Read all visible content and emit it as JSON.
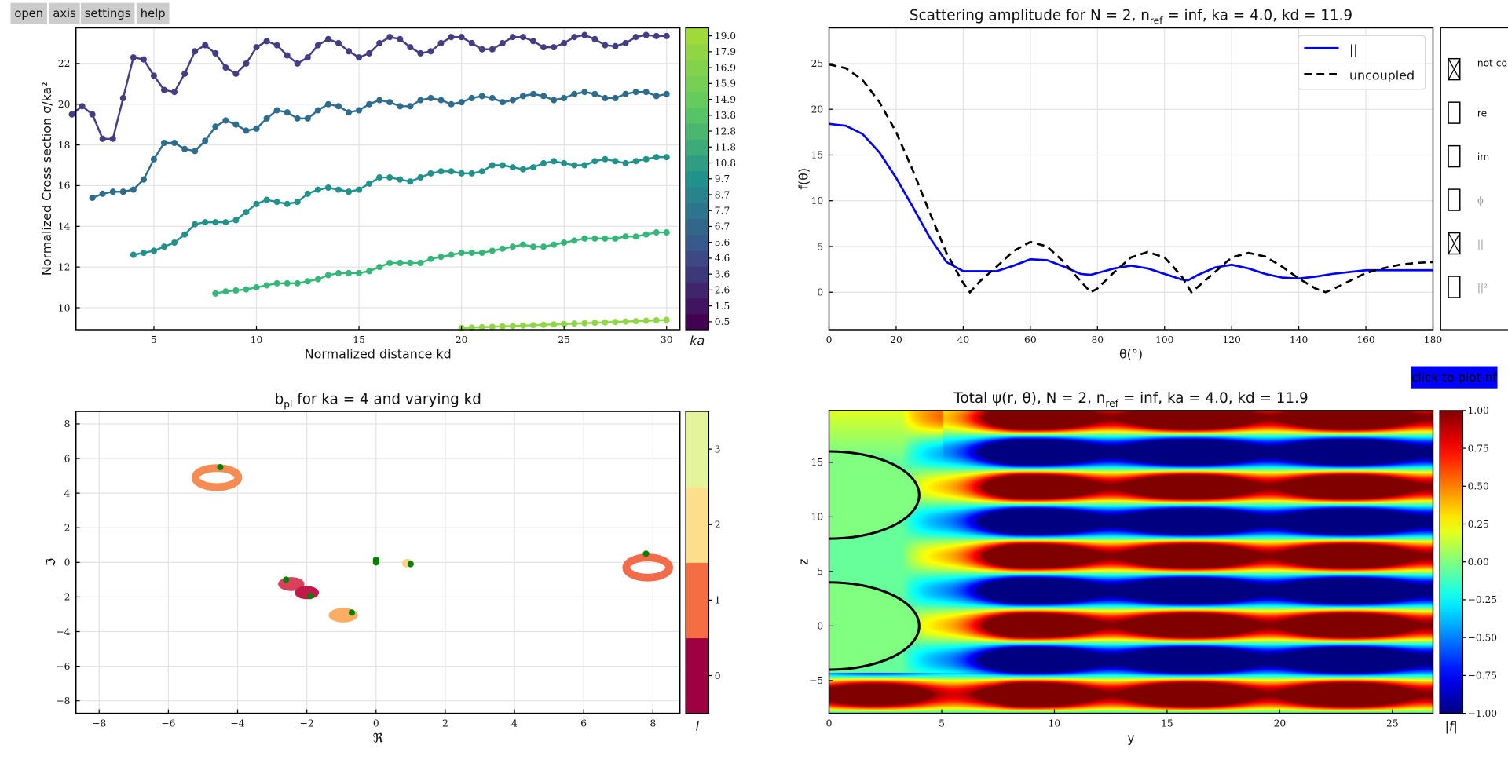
{
  "toolbar": {
    "buttons": [
      "open",
      "axis",
      "settings",
      "help"
    ]
  },
  "nf_button": "click to plot nf",
  "chart_data": [
    {
      "type": "scatter-line",
      "xlabel": "Normalized distance kd",
      "ylabel": "Normalized Cross section σ/ka²",
      "xlim": [
        1.2,
        30.65
      ],
      "ylim": [
        8.92,
        23.75
      ],
      "xticks": [
        5,
        10,
        15,
        20,
        25,
        30
      ],
      "xtick_labels": [
        "5",
        "10",
        "15",
        "20",
        "25",
        "30"
      ],
      "yticks": [
        10,
        12,
        14,
        16,
        18,
        20,
        22
      ],
      "ytick_labels": [
        "10",
        "12",
        "14",
        "16",
        "18",
        "20",
        "22"
      ],
      "colorbar": {
        "label": "ka",
        "ticks": [
          "0.5",
          "1.5",
          "2.6",
          "3.6",
          "4.6",
          "5.6",
          "6.7",
          "7.7",
          "8.7",
          "9.7",
          "10.8",
          "11.8",
          "12.8",
          "13.8",
          "14.9",
          "15.9",
          "16.9",
          "17.9",
          "19.0"
        ],
        "cmap": [
          "#440154",
          "#3b528b",
          "#21918c",
          "#5ec962",
          "#a0da39"
        ]
      },
      "series": [
        {
          "color": "#433d84",
          "x0": 1,
          "step": 0.5,
          "y": [
            19.5,
            19.9,
            19.5,
            18.3,
            18.3,
            20.3,
            22.3,
            22.2,
            21.4,
            20.7,
            20.6,
            21.5,
            22.6,
            22.9,
            22.5,
            21.8,
            21.5,
            22.0,
            22.8,
            23.1,
            22.9,
            22.4,
            22.0,
            22.3,
            22.9,
            23.2,
            23.0,
            22.6,
            22.3,
            22.5,
            23.0,
            23.3,
            23.2,
            22.8,
            22.5,
            22.6,
            23.0,
            23.3,
            23.3,
            23.0,
            22.7,
            22.7,
            23.0,
            23.3,
            23.3,
            23.1,
            22.8,
            22.8,
            23.0,
            23.3,
            23.4,
            23.2,
            22.9,
            22.85,
            23.0,
            23.3,
            23.4,
            23.35,
            23.35
          ]
        },
        {
          "color": "#2e6c8e",
          "x0": 2,
          "step": 0.5,
          "y": [
            15.4,
            15.6,
            15.7,
            15.7,
            15.8,
            16.3,
            17.3,
            18.1,
            18.1,
            17.8,
            17.7,
            18.2,
            18.9,
            19.2,
            19.0,
            18.7,
            18.8,
            19.3,
            19.7,
            19.6,
            19.3,
            19.3,
            19.7,
            20.0,
            19.9,
            19.6,
            19.7,
            20.0,
            20.2,
            20.1,
            19.9,
            19.9,
            20.2,
            20.3,
            20.2,
            20.0,
            20.1,
            20.3,
            20.4,
            20.3,
            20.1,
            20.2,
            20.4,
            20.5,
            20.4,
            20.2,
            20.3,
            20.5,
            20.6,
            20.5,
            20.3,
            20.3,
            20.5,
            20.6,
            20.6,
            20.4,
            20.5
          ]
        },
        {
          "color": "#21918c",
          "x0": 4,
          "step": 0.5,
          "y": [
            12.6,
            12.7,
            12.8,
            13.0,
            13.2,
            13.6,
            14.1,
            14.2,
            14.2,
            14.2,
            14.3,
            14.7,
            15.1,
            15.3,
            15.2,
            15.1,
            15.2,
            15.6,
            15.8,
            15.9,
            15.8,
            15.7,
            15.8,
            16.1,
            16.4,
            16.4,
            16.3,
            16.2,
            16.4,
            16.6,
            16.7,
            16.7,
            16.6,
            16.6,
            16.7,
            17.0,
            17.0,
            16.9,
            16.8,
            16.9,
            17.1,
            17.2,
            17.1,
            17.0,
            17.0,
            17.2,
            17.3,
            17.2,
            17.1,
            17.2,
            17.3,
            17.4,
            17.4
          ]
        },
        {
          "color": "#35b779",
          "x0": 8,
          "step": 0.5,
          "y": [
            10.7,
            10.8,
            10.85,
            10.9,
            11.0,
            11.1,
            11.2,
            11.2,
            11.2,
            11.3,
            11.4,
            11.6,
            11.7,
            11.7,
            11.7,
            11.8,
            12.0,
            12.2,
            12.2,
            12.2,
            12.2,
            12.4,
            12.5,
            12.6,
            12.7,
            12.7,
            12.7,
            12.8,
            12.9,
            13.0,
            13.1,
            13.0,
            13.0,
            13.1,
            13.2,
            13.3,
            13.4,
            13.4,
            13.4,
            13.4,
            13.5,
            13.5,
            13.6,
            13.7,
            13.7
          ]
        },
        {
          "color": "#8fd744",
          "x0": 20,
          "step": 0.5,
          "y": [
            9.0,
            9.02,
            9.04,
            9.06,
            9.08,
            9.1,
            9.12,
            9.14,
            9.16,
            9.18,
            9.2,
            9.22,
            9.24,
            9.26,
            9.28,
            9.3,
            9.32,
            9.34,
            9.36,
            9.38,
            9.4
          ]
        }
      ]
    },
    {
      "type": "line",
      "title": {
        "a": "Scattering amplitude for N = 2, n",
        "sub": "ref",
        "b": " = inf, ka = 4.0, kd = 11.9"
      },
      "xlabel": "θ(°)",
      "ylabel": "f(θ)",
      "xlim": [
        0,
        180
      ],
      "ylim": [
        -4.1,
        28.9
      ],
      "xticks": [
        0,
        20,
        40,
        60,
        80,
        100,
        120,
        140,
        160,
        180
      ],
      "xtick_labels": [
        "0",
        "20",
        "40",
        "60",
        "80",
        "100",
        "120",
        "140",
        "160",
        "180"
      ],
      "yticks": [
        0,
        5,
        10,
        15,
        20,
        25
      ],
      "ytick_labels": [
        "0",
        "5",
        "10",
        "15",
        "20",
        "25"
      ],
      "legend": {
        "position": "top-right",
        "items": [
          "||",
          "uncoupled"
        ]
      },
      "series": [
        {
          "name": "||",
          "color": "#0000ff",
          "dash": false,
          "x": [
            0,
            5,
            10,
            15,
            20,
            25,
            30,
            35,
            40,
            45,
            50,
            55,
            60,
            65,
            70,
            75,
            78,
            80,
            85,
            90,
            95,
            100,
            105,
            107,
            110,
            115,
            120,
            125,
            130,
            135,
            140,
            145,
            150,
            155,
            160,
            165,
            170,
            175,
            180
          ],
          "y": [
            18.4,
            18.2,
            17.3,
            15.3,
            12.5,
            9.3,
            6.0,
            3.3,
            2.3,
            2.3,
            2.3,
            2.9,
            3.6,
            3.5,
            2.8,
            2.0,
            1.9,
            2.1,
            2.6,
            2.9,
            2.6,
            2.0,
            1.4,
            1.3,
            1.9,
            2.7,
            3.0,
            2.6,
            2.0,
            1.6,
            1.5,
            1.7,
            2.0,
            2.2,
            2.4,
            2.4,
            2.4,
            2.4,
            2.4
          ]
        },
        {
          "name": "uncoupled",
          "color": "#000000",
          "dash": true,
          "x": [
            0,
            5,
            10,
            15,
            20,
            25,
            30,
            35,
            40,
            42,
            45,
            50,
            55,
            60,
            65,
            70,
            75,
            78,
            80,
            85,
            90,
            95,
            100,
            105,
            108,
            110,
            115,
            120,
            125,
            130,
            135,
            140,
            145,
            148,
            150,
            155,
            160,
            165,
            170,
            175,
            180
          ],
          "y": [
            24.9,
            24.5,
            23.2,
            20.8,
            17.5,
            13.3,
            8.7,
            4.3,
            1.0,
            0.0,
            1.2,
            2.8,
            4.5,
            5.5,
            5.0,
            3.3,
            1.2,
            0.0,
            0.4,
            2.2,
            3.8,
            4.4,
            3.8,
            1.8,
            0.0,
            0.6,
            2.2,
            3.8,
            4.3,
            3.9,
            2.8,
            1.5,
            0.4,
            0.0,
            0.3,
            1.2,
            2.1,
            2.6,
            3.0,
            3.2,
            3.3
          ]
        }
      ],
      "checkboxes": [
        {
          "label": "not coupled",
          "checked": true,
          "dim": false
        },
        {
          "label": "re",
          "checked": false,
          "dim": false
        },
        {
          "label": "im",
          "checked": false,
          "dim": false
        },
        {
          "label": "ϕ",
          "checked": false,
          "dim": true
        },
        {
          "label": "||",
          "checked": true,
          "dim": true
        },
        {
          "label": "||²",
          "checked": false,
          "dim": true
        }
      ]
    },
    {
      "type": "scatter",
      "title": {
        "a": "b",
        "sub": "pl",
        "b": " for ka = 4 and varying kd"
      },
      "xlabel": "ℜ",
      "ylabel": "ℑ",
      "xlim": [
        -8.67,
        8.78
      ],
      "ylim": [
        -8.72,
        8.72
      ],
      "xticks": [
        -8,
        -6,
        -4,
        -2,
        0,
        2,
        4,
        6,
        8
      ],
      "xtick_labels": [
        "−8",
        "−6",
        "−4",
        "−2",
        "0",
        "2",
        "4",
        "6",
        "8"
      ],
      "yticks": [
        -8,
        -6,
        -4,
        -2,
        0,
        2,
        4,
        6,
        8
      ],
      "ytick_labels": [
        "−8",
        "−6",
        "−4",
        "−2",
        "0",
        "2",
        "4",
        "6",
        "8"
      ],
      "clusters": [
        {
          "re": -4.6,
          "im": 4.9,
          "rx": 0.62,
          "ry": 0.55,
          "ring": true,
          "color": "#f68c53"
        },
        {
          "re": 7.85,
          "im": -0.3,
          "rx": 0.62,
          "ry": 0.58,
          "ring": true,
          "color": "#f26c4a"
        },
        {
          "re": -2.45,
          "im": -1.25,
          "rx": 0.38,
          "ry": 0.4,
          "ring": false,
          "color": "#d8415a"
        },
        {
          "re": -2.0,
          "im": -1.75,
          "rx": 0.35,
          "ry": 0.38,
          "ring": false,
          "color": "#c2194a"
        },
        {
          "re": -0.95,
          "im": -3.05,
          "rx": 0.42,
          "ry": 0.42,
          "ring": false,
          "color": "#fbae63"
        },
        {
          "re": 0.0,
          "im": 0.05,
          "rx": 0.1,
          "ry": 0.25,
          "ring": false,
          "color": "#fde08b"
        },
        {
          "re": 0.9,
          "im": -0.05,
          "rx": 0.15,
          "ry": 0.25,
          "ring": false,
          "color": "#fdd38a"
        }
      ],
      "points": [
        [
          -4.5,
          5.5
        ],
        [
          7.8,
          0.5
        ],
        [
          -2.6,
          -1.0
        ],
        [
          -1.9,
          -1.95
        ],
        [
          -0.7,
          -2.9
        ],
        [
          0.0,
          0.15
        ],
        [
          0.0,
          0.0
        ],
        [
          1.0,
          -0.1
        ]
      ],
      "point_color": "#007f00",
      "colorbar": {
        "label": "l",
        "ticks": [
          "0",
          "1",
          "2",
          "3"
        ],
        "colors": [
          "#9e0142",
          "#f46d43",
          "#fddf8b",
          "#e3f49b"
        ]
      }
    },
    {
      "type": "heatmap",
      "title": {
        "a": "Total ψ(r, θ), N = 2, n",
        "sub": "ref",
        "b": " = inf, ka = 4.0, kd = 11.9"
      },
      "xlabel": "y",
      "ylabel": "z",
      "xlim": [
        0,
        26.8
      ],
      "ylim": [
        -8,
        19.75
      ],
      "xticks": [
        0,
        5,
        10,
        15,
        20,
        25
      ],
      "xtick_labels": [
        "0",
        "5",
        "10",
        "15",
        "20",
        "25"
      ],
      "yticks": [
        -5,
        0,
        5,
        10,
        15
      ],
      "ytick_labels": [
        "−5",
        "0",
        "5",
        "10",
        "15"
      ],
      "clim": [
        -1,
        1
      ],
      "colormap": "jet",
      "scatterers": [
        {
          "y": 0,
          "z": 0,
          "r": 4
        },
        {
          "y": 0,
          "z": 12,
          "r": 4
        }
      ],
      "colorbar": {
        "label": "|f|",
        "ticks": [
          "1.00",
          "0.75",
          "0.50",
          "0.25",
          "0.00",
          "−0.25",
          "−0.50",
          "−0.75",
          "−1.00"
        ]
      }
    }
  ]
}
